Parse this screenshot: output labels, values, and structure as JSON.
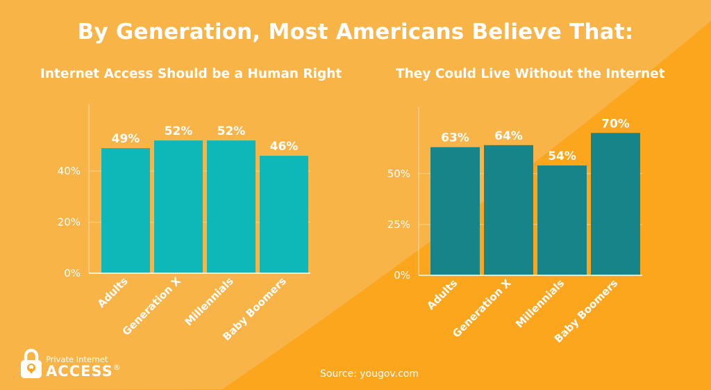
{
  "title": "By Generation, Most Americans Believe That:",
  "colors": {
    "background": "#FBA61D",
    "background_light": "#F9B448",
    "bar_left": "#0FB8B8",
    "bar_right": "#168489",
    "text": "#FFFFFF"
  },
  "chart_data": [
    {
      "type": "bar",
      "title": "Internet Access Should be a Human Right",
      "categories": [
        "Adults",
        "Generation X",
        "Millennials",
        "Baby Boomers"
      ],
      "values": [
        49,
        52,
        52,
        46
      ],
      "value_labels": [
        "49%",
        "52%",
        "52%",
        "46%"
      ],
      "yticks": [
        0,
        20,
        40
      ],
      "ytick_labels": [
        "0%",
        "20%",
        "40%"
      ],
      "ylim": [
        0,
        64
      ],
      "xlabel": "",
      "ylabel": "",
      "grid": true,
      "color": "#0FB8B8"
    },
    {
      "type": "bar",
      "title": "They Could Live Without the Internet",
      "categories": [
        "Adults",
        "Generation X",
        "Millennials",
        "Baby Boomers"
      ],
      "values": [
        63,
        64,
        54,
        70
      ],
      "value_labels": [
        "63%",
        "64%",
        "54%",
        "70%"
      ],
      "yticks": [
        0,
        25,
        50
      ],
      "ytick_labels": [
        "0%",
        "25%",
        "50%"
      ],
      "ylim": [
        0,
        80
      ],
      "xlabel": "",
      "ylabel": "",
      "grid": true,
      "color": "#168489"
    }
  ],
  "logo": {
    "line1": "Private Internet",
    "line2": "ACCESS",
    "mark": "®"
  },
  "source": "Source: yougov.com"
}
